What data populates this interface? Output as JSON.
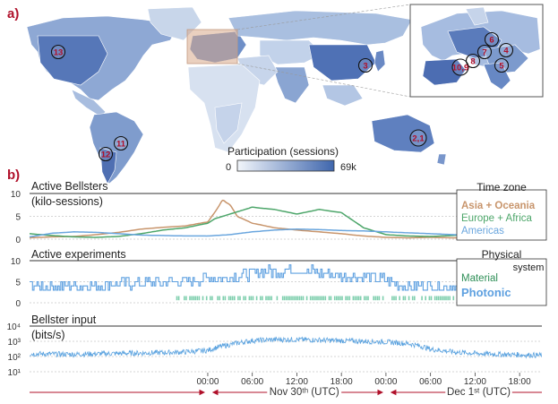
{
  "panel_a": {
    "label": "a)",
    "colorbar": {
      "title": "Participation (sessions)",
      "min": "0",
      "max": "69k",
      "color_low": "#f2f6fb",
      "color_high": "#3f66ad"
    },
    "markers": [
      "13",
      "3",
      "6",
      "4",
      "7",
      "8",
      "10,9",
      "5",
      "2,1",
      "11",
      "12"
    ]
  },
  "panel_b": {
    "label": "b)"
  },
  "colors": {
    "asia": "#c8956c",
    "europe": "#4da66a",
    "americas": "#6aa6de",
    "material": "#7fcfae",
    "photonic": "#5ea0e0",
    "input": "#5aa2df",
    "accent_red": "#b0102a"
  },
  "chart_data": [
    {
      "type": "line",
      "title": "Active Bellsters",
      "ylabel": "(kilo-sessions)",
      "ylim": [
        0,
        10
      ],
      "yticks": [
        "10",
        "5",
        "0"
      ],
      "legend_title": "Time zone",
      "legend_position": "right",
      "x": [
        -24,
        -21,
        -18,
        -15,
        -12,
        -9,
        -6,
        -3,
        0,
        1,
        2,
        3,
        4,
        6,
        9,
        12,
        15,
        18,
        21,
        24,
        27,
        30,
        33,
        36,
        39,
        42,
        45
      ],
      "series": [
        {
          "name": "Asia + Oceania",
          "values": [
            0.3,
            0.5,
            0.6,
            1.0,
            1.5,
            2.2,
            2.6,
            2.9,
            3.8,
            6.0,
            8.5,
            7.5,
            5.0,
            3.5,
            2.5,
            2.0,
            1.6,
            1.2,
            0.7,
            0.4,
            0.3,
            0.4,
            0.3,
            0.3,
            0.3,
            0.3,
            0.3
          ]
        },
        {
          "name": "Europe + Africa",
          "values": [
            1.2,
            0.8,
            0.5,
            0.4,
            0.6,
            1.2,
            2.0,
            2.5,
            3.5,
            4.5,
            5.0,
            5.5,
            6.0,
            7.0,
            6.5,
            5.5,
            6.5,
            5.8,
            2.5,
            1.0,
            0.7,
            0.6,
            0.8,
            1.2,
            1.5,
            1.5,
            1.5
          ]
        },
        {
          "name": "Americas",
          "values": [
            0.5,
            1.3,
            1.6,
            1.5,
            1.2,
            0.9,
            0.8,
            0.7,
            0.7,
            0.8,
            0.9,
            1.0,
            1.2,
            1.6,
            2.0,
            2.2,
            2.1,
            1.9,
            1.8,
            1.6,
            1.4,
            1.2,
            1.0,
            0.9,
            0.8,
            0.7,
            0.6
          ]
        }
      ]
    },
    {
      "type": "line",
      "title": "Active experiments",
      "ylim": [
        0,
        10
      ],
      "yticks": [
        "10",
        "5",
        "0"
      ],
      "legend_title": "Physical system",
      "legend_position": "right",
      "x": [
        -24,
        -18,
        -12,
        -6,
        -3,
        0,
        3,
        6,
        9,
        12,
        15,
        18,
        21,
        24,
        27,
        30,
        33,
        36,
        39,
        42,
        45
      ],
      "series": [
        {
          "name": "Material",
          "values": [
            0,
            0,
            0,
            0,
            1,
            1,
            1,
            1,
            1,
            1,
            1,
            1,
            1,
            1,
            1,
            1,
            1,
            1,
            1,
            1,
            0
          ]
        },
        {
          "name": "Photonic",
          "values": [
            4,
            4,
            4.5,
            5,
            5,
            6,
            6,
            7,
            7.5,
            8,
            7,
            6.5,
            6,
            5.5,
            4,
            4,
            4,
            4,
            4,
            3,
            3
          ]
        }
      ]
    },
    {
      "type": "line",
      "title": "Bellster input",
      "ylabel": "(bits/s)",
      "yscale": "log",
      "ylim": [
        10,
        10000
      ],
      "yticks": [
        "10⁴",
        "10³",
        "10²",
        "10¹"
      ],
      "x": [
        -24,
        -18,
        -12,
        -6,
        -3,
        0,
        3,
        6,
        9,
        12,
        15,
        18,
        21,
        24,
        27,
        30,
        33,
        36,
        39,
        42,
        45
      ],
      "series": [
        {
          "name": "",
          "values": [
            150,
            140,
            160,
            180,
            200,
            250,
            600,
            1100,
            1300,
            1300,
            1200,
            1100,
            1000,
            900,
            700,
            300,
            200,
            160,
            140,
            130,
            120
          ]
        }
      ]
    }
  ],
  "xaxis": {
    "ticks": [
      "00:00",
      "06:00",
      "12:00",
      "18:00",
      "00:00",
      "06:00",
      "12:00",
      "18:00"
    ],
    "tick_hours": [
      0,
      6,
      12,
      18,
      24,
      30,
      36,
      42
    ],
    "nov_label": "Nov 30ᵗʰ (UTC)",
    "dec_label": "Dec 1ˢᵗ (UTC)"
  }
}
